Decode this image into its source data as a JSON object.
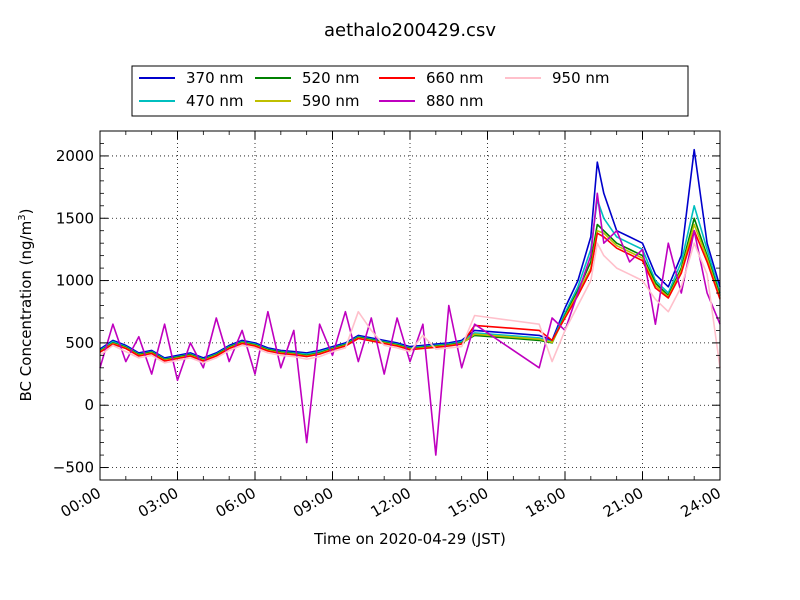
{
  "chart_data": {
    "type": "line",
    "title": "aethalo200429.csv",
    "xlabel": "Time on 2020-04-29 (JST)",
    "ylabel_main": "BC Concentration (ng/m",
    "ylabel_sup": "3",
    "ylabel_tail": ")",
    "xlim_hours": [
      0,
      24
    ],
    "ylim": [
      -600,
      2200
    ],
    "x_ticks": [
      {
        "hour": 0,
        "label": "00:00"
      },
      {
        "hour": 3,
        "label": "03:00"
      },
      {
        "hour": 6,
        "label": "06:00"
      },
      {
        "hour": 9,
        "label": "09:00"
      },
      {
        "hour": 12,
        "label": "12:00"
      },
      {
        "hour": 15,
        "label": "15:00"
      },
      {
        "hour": 18,
        "label": "18:00"
      },
      {
        "hour": 21,
        "label": "21:00"
      },
      {
        "hour": 24,
        "label": "24:00"
      }
    ],
    "y_ticks": [
      {
        "value": -500,
        "label": "−500"
      },
      {
        "value": 0,
        "label": "0"
      },
      {
        "value": 500,
        "label": "500"
      },
      {
        "value": 1000,
        "label": "1000"
      },
      {
        "value": 1500,
        "label": "1500"
      },
      {
        "value": 2000,
        "label": "2000"
      }
    ],
    "grid": true,
    "legend_position": "top-center",
    "x": [
      0,
      0.5,
      1,
      1.5,
      2,
      2.5,
      3,
      3.5,
      4,
      4.5,
      5,
      5.5,
      6,
      6.5,
      7,
      7.5,
      8,
      8.5,
      9,
      9.5,
      10,
      10.5,
      11,
      11.5,
      12,
      12.5,
      13,
      13.5,
      14,
      14.5,
      17,
      17.5,
      18,
      18.5,
      19,
      19.25,
      19.5,
      20,
      20.5,
      21,
      21.5,
      22,
      22.5,
      23,
      23.5,
      24
    ],
    "series": [
      {
        "name": "370 nm",
        "color": "#0000cc",
        "values": [
          450,
          520,
          480,
          420,
          440,
          380,
          400,
          420,
          380,
          420,
          480,
          520,
          500,
          460,
          440,
          430,
          420,
          440,
          470,
          500,
          560,
          540,
          520,
          500,
          470,
          480,
          490,
          500,
          520,
          600,
          560,
          520,
          780,
          1000,
          1350,
          1950,
          1700,
          1400,
          1350,
          1300,
          1050,
          950,
          1200,
          2050,
          1300,
          950
        ]
      },
      {
        "name": "470 nm",
        "color": "#00bfbf",
        "values": [
          440,
          510,
          470,
          410,
          430,
          370,
          390,
          410,
          370,
          410,
          470,
          510,
          490,
          450,
          430,
          420,
          410,
          430,
          460,
          490,
          550,
          530,
          510,
          490,
          460,
          470,
          480,
          490,
          510,
          580,
          540,
          510,
          740,
          950,
          1250,
          1650,
          1500,
          1350,
          1300,
          1250,
          1000,
          900,
          1150,
          1600,
          1250,
          900
        ]
      },
      {
        "name": "520 nm",
        "color": "#008000",
        "values": [
          435,
          500,
          465,
          405,
          425,
          365,
          385,
          405,
          365,
          405,
          465,
          505,
          485,
          445,
          425,
          415,
          400,
          420,
          455,
          485,
          545,
          525,
          505,
          485,
          455,
          465,
          475,
          485,
          500,
          560,
          520,
          500,
          720,
          920,
          1150,
          1450,
          1400,
          1300,
          1250,
          1200,
          980,
          880,
          1100,
          1500,
          1200,
          880
        ]
      },
      {
        "name": "590 nm",
        "color": "#bfbf00",
        "values": [
          430,
          495,
          460,
          400,
          420,
          360,
          380,
          400,
          360,
          400,
          460,
          500,
          480,
          440,
          420,
          410,
          395,
          415,
          450,
          480,
          540,
          520,
          500,
          480,
          450,
          460,
          470,
          480,
          495,
          570,
          530,
          505,
          710,
          900,
          1100,
          1400,
          1380,
          1280,
          1230,
          1180,
          960,
          870,
          1080,
          1450,
          1180,
          860
        ]
      },
      {
        "name": "660 nm",
        "color": "#ff0000",
        "values": [
          425,
          490,
          455,
          395,
          415,
          355,
          375,
          395,
          355,
          395,
          455,
          495,
          475,
          435,
          415,
          405,
          390,
          410,
          445,
          475,
          535,
          515,
          495,
          475,
          445,
          455,
          465,
          475,
          490,
          640,
          600,
          520,
          700,
          880,
          1080,
          1380,
          1350,
          1260,
          1210,
          1160,
          940,
          860,
          1060,
          1400,
          1150,
          850
        ]
      },
      {
        "name": "880 nm",
        "color": "#bf00bf",
        "values": [
          300,
          650,
          350,
          550,
          250,
          650,
          200,
          500,
          300,
          700,
          350,
          600,
          250,
          750,
          300,
          600,
          -300,
          650,
          400,
          750,
          350,
          700,
          250,
          700,
          350,
          650,
          -400,
          800,
          300,
          650,
          300,
          700,
          600,
          900,
          1200,
          1700,
          1300,
          1400,
          1150,
          1250,
          650,
          1300,
          900,
          1400,
          900,
          650
        ]
      },
      {
        "name": "950 nm",
        "color": "#ffc0cb",
        "values": [
          400,
          480,
          430,
          380,
          400,
          340,
          360,
          380,
          340,
          380,
          440,
          480,
          460,
          420,
          400,
          390,
          370,
          390,
          430,
          460,
          750,
          600,
          480,
          460,
          430,
          560,
          450,
          460,
          470,
          720,
          650,
          350,
          600,
          800,
          1000,
          1300,
          1200,
          1100,
          1050,
          1000,
          850,
          750,
          950,
          1300,
          1050,
          300
        ]
      }
    ]
  }
}
